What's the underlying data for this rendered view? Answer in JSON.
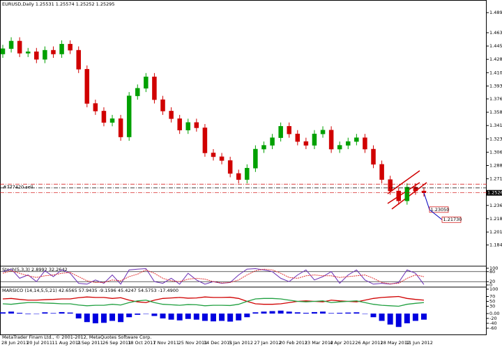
{
  "chart_data": [
    {
      "type": "candlestick",
      "title": "EURUSD,Daily  1.25531 1.25574 1.25252 1.25295",
      "categories": [
        "28 Jun 2011",
        null,
        null,
        "20 Jul 2011",
        null,
        null,
        "11 Aug 2011",
        null,
        null,
        "2 Sep 2011",
        null,
        null,
        "26 Sep 2011",
        null,
        null,
        "18 Oct 2011",
        null,
        null,
        "7 Nov 2011",
        null,
        null,
        "25 Nov 2011",
        null,
        null,
        "14 Dec 2011",
        null,
        null,
        "5 Jan 2012",
        null,
        null,
        "27 Jan 2012",
        null,
        null,
        "20 Feb 2012",
        null,
        null,
        "13 Mar 2012",
        null,
        null,
        "4 Apr 2012",
        null,
        null,
        "26 Apr 2012",
        null,
        null,
        "18 May 2012",
        null,
        null,
        "11 Jun 2012",
        null,
        null
      ],
      "open": [
        1.435,
        1.442,
        1.452,
        1.436,
        1.438,
        1.428,
        1.44,
        1.435,
        1.448,
        1.44,
        1.415,
        1.37,
        1.36,
        1.345,
        1.35,
        1.326,
        1.38,
        1.39,
        1.405,
        1.375,
        1.36,
        1.35,
        1.335,
        1.345,
        1.338,
        1.305,
        1.3,
        1.295,
        1.278,
        1.27,
        1.285,
        1.31,
        1.315,
        1.325,
        1.34,
        1.33,
        1.32,
        1.315,
        1.33,
        1.335,
        1.31,
        1.315,
        1.32,
        1.325,
        1.31,
        1.29,
        1.27,
        1.255,
        1.242,
        1.26,
        1.255
      ],
      "high": [
        1.447,
        1.457,
        1.457,
        1.443,
        1.443,
        1.445,
        1.445,
        1.453,
        1.453,
        1.445,
        1.42,
        1.375,
        1.365,
        1.355,
        1.355,
        1.385,
        1.395,
        1.41,
        1.41,
        1.38,
        1.365,
        1.355,
        1.35,
        1.35,
        1.343,
        1.31,
        1.305,
        1.3,
        1.283,
        1.29,
        1.315,
        1.32,
        1.33,
        1.345,
        1.345,
        1.335,
        1.325,
        1.335,
        1.34,
        1.34,
        1.32,
        1.325,
        1.33,
        1.33,
        1.315,
        1.295,
        1.275,
        1.26,
        1.265,
        1.265,
        1.26
      ],
      "low": [
        1.43,
        1.437,
        1.431,
        1.431,
        1.423,
        1.423,
        1.43,
        1.43,
        1.435,
        1.41,
        1.365,
        1.355,
        1.34,
        1.34,
        1.321,
        1.321,
        1.375,
        1.385,
        1.37,
        1.355,
        1.345,
        1.33,
        1.33,
        1.333,
        1.3,
        1.295,
        1.29,
        1.273,
        1.265,
        1.265,
        1.28,
        1.305,
        1.31,
        1.32,
        1.325,
        1.315,
        1.31,
        1.31,
        1.325,
        1.305,
        1.305,
        1.31,
        1.315,
        1.305,
        1.285,
        1.265,
        1.25,
        1.237,
        1.237,
        1.25,
        1.2476
      ],
      "close": [
        1.442,
        1.452,
        1.436,
        1.438,
        1.428,
        1.44,
        1.435,
        1.448,
        1.44,
        1.415,
        1.37,
        1.36,
        1.345,
        1.35,
        1.326,
        1.38,
        1.39,
        1.405,
        1.375,
        1.36,
        1.35,
        1.335,
        1.345,
        1.338,
        1.305,
        1.3,
        1.295,
        1.278,
        1.27,
        1.285,
        1.31,
        1.315,
        1.325,
        1.34,
        1.33,
        1.32,
        1.315,
        1.33,
        1.335,
        1.31,
        1.315,
        1.32,
        1.325,
        1.31,
        1.29,
        1.27,
        1.255,
        1.242,
        1.26,
        1.255,
        1.2526
      ],
      "up_color": "#00a000",
      "down_color": "#d00000",
      "ylim": [
        1.158,
        1.506
      ],
      "yticks": [
        {
          "value": 1.184,
          "label": "1.18400"
        },
        {
          "value": 1.201,
          "label": "1.20100"
        },
        {
          "value": 1.2185,
          "label": "1.21850"
        },
        {
          "value": 1.236,
          "label": "1.23600"
        },
        {
          "value": 1.271,
          "label": "1.27100"
        },
        {
          "value": 1.2885,
          "label": "1.28850"
        },
        {
          "value": 1.306,
          "label": "1.30600"
        },
        {
          "value": 1.3235,
          "label": "1.32350"
        },
        {
          "value": 1.341,
          "label": "1.34100"
        },
        {
          "value": 1.3585,
          "label": "1.35850"
        },
        {
          "value": 1.376,
          "label": "1.37600"
        },
        {
          "value": 1.393,
          "label": "1.39300"
        },
        {
          "value": 1.4105,
          "label": "1.41050"
        },
        {
          "value": 1.428,
          "label": "1.42800"
        },
        {
          "value": 1.4455,
          "label": "1.44550"
        },
        {
          "value": 1.463,
          "label": "1.46300"
        },
        {
          "value": 1.4894,
          "label": "1.48940"
        }
      ],
      "current_price": {
        "value": 1.2526,
        "label": "1.25260"
      },
      "order_label": "#777420 sell",
      "levels": [
        {
          "value": 1.264,
          "color": "#d00000"
        },
        {
          "value": 1.259,
          "color": "#000000"
        },
        {
          "value": 1.2526,
          "color": "#d00000"
        }
      ],
      "annotations": [
        {
          "value": 1.2305,
          "label": "1.23050"
        },
        {
          "value": 1.2173,
          "label": "1.21730"
        }
      ]
    },
    {
      "type": "line",
      "title": "Stoch(5,3,3) 2.8992 32.2642",
      "series": [
        {
          "color": "#6a2fb5",
          "values": [
            80,
            95,
            40,
            60,
            20,
            85,
            50,
            90,
            70,
            10,
            5,
            30,
            10,
            60,
            5,
            90,
            95,
            98,
            20,
            10,
            40,
            5,
            70,
            30,
            5,
            20,
            10,
            15,
            60,
            95,
            98,
            90,
            80,
            40,
            20,
            60,
            90,
            30,
            50,
            80,
            10,
            60,
            90,
            30,
            5,
            10,
            5,
            15,
            90,
            70,
            3
          ]
        },
        {
          "color": "#e03030",
          "values": [
            70,
            85,
            70,
            55,
            45,
            55,
            60,
            70,
            75,
            50,
            25,
            15,
            15,
            30,
            25,
            50,
            65,
            90,
            70,
            40,
            25,
            20,
            35,
            40,
            35,
            20,
            12,
            15,
            30,
            60,
            85,
            95,
            90,
            70,
            45,
            40,
            55,
            60,
            55,
            55,
            45,
            50,
            55,
            60,
            40,
            15,
            7,
            10,
            40,
            60,
            50
          ]
        }
      ],
      "ylim": [
        0,
        100
      ],
      "yticks": [
        0,
        20,
        80,
        100
      ]
    },
    {
      "type": "bar",
      "title": "MARSICO (14,14,5,5,21) 42.6565 57.9435 -9.1596 45.4247 54.5753 -17.4900",
      "series": [
        {
          "type": "bar",
          "color": "#0000e0",
          "values": [
            5,
            8,
            3,
            -2,
            0,
            5,
            2,
            6,
            4,
            -20,
            -35,
            -40,
            -38,
            -30,
            -35,
            -15,
            -5,
            0,
            -10,
            -20,
            -25,
            -28,
            -22,
            -25,
            -30,
            -32,
            -30,
            -33,
            -28,
            -15,
            5,
            8,
            10,
            12,
            8,
            5,
            3,
            6,
            8,
            2,
            3,
            4,
            5,
            0,
            -15,
            -30,
            -45,
            -55,
            -40,
            -30,
            -25
          ]
        },
        {
          "type": "line",
          "color": "#d00000",
          "values": [
            60,
            62,
            58,
            55,
            55,
            57,
            58,
            60,
            60,
            65,
            68,
            66,
            66,
            62,
            65,
            55,
            48,
            45,
            55,
            62,
            64,
            66,
            63,
            64,
            68,
            66,
            66,
            67,
            62,
            50,
            40,
            38,
            38,
            40,
            45,
            50,
            52,
            50,
            48,
            55,
            52,
            50,
            48,
            55,
            62,
            66,
            68,
            70,
            62,
            58,
            55
          ]
        },
        {
          "type": "line",
          "color": "#20a040",
          "values": [
            40,
            38,
            42,
            45,
            45,
            43,
            42,
            40,
            40,
            35,
            32,
            34,
            34,
            38,
            35,
            45,
            52,
            55,
            45,
            38,
            36,
            34,
            37,
            36,
            32,
            34,
            34,
            33,
            38,
            50,
            60,
            62,
            62,
            60,
            55,
            50,
            48,
            50,
            52,
            45,
            48,
            50,
            52,
            45,
            38,
            34,
            32,
            30,
            38,
            42,
            45
          ]
        }
      ],
      "ylim": [
        -80,
        100
      ],
      "yticks": [
        100,
        70,
        50,
        30,
        {
          "value": 0,
          "label": "0.00"
        },
        -20,
        -40,
        -60
      ]
    }
  ],
  "footer": "MetaTrader Finam Ltd., © 2001-2012, MetaQuotes Software Corp."
}
